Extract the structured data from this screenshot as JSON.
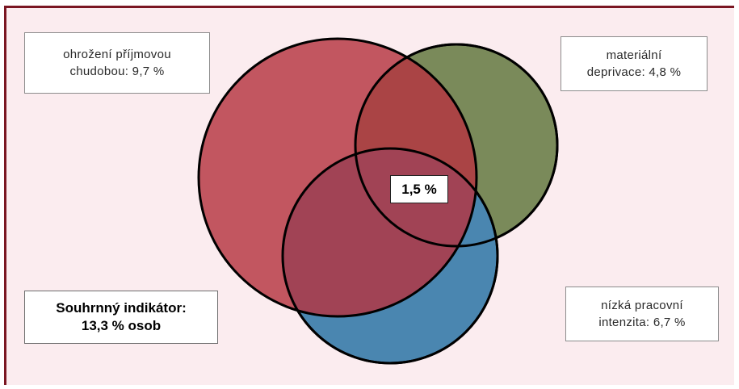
{
  "labels": {
    "poverty": {
      "line1": "ohrožení příjmovou",
      "line2": "chudobou: 9,7 %"
    },
    "deprivation": {
      "line1": "materiální",
      "line2": "deprivace: 4,8 %"
    },
    "work": {
      "line1": "nízká pracovní",
      "line2": "intenzita: 6,7 %"
    },
    "summary": {
      "line1": "Souhrnný indikátor:",
      "line2": "13,3 % osob"
    },
    "overlap": "1,5 %"
  },
  "colors": {
    "frame_border": "#7a1622",
    "background": "#fbecef",
    "poverty_circle": "#bc4a56",
    "deprivation_circle": "#7a8a5a",
    "work_circle": "#4a86b0",
    "circle_outline": "#000000"
  }
}
